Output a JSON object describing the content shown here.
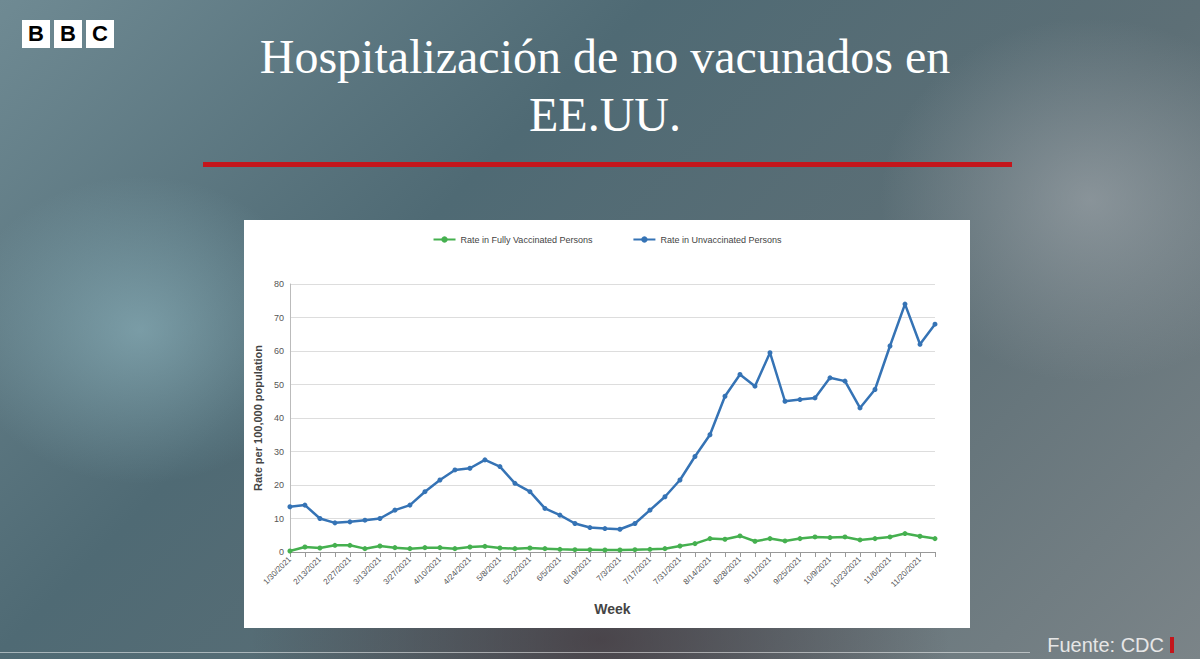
{
  "header": {
    "logo": "BBC",
    "title": "Hospitalización de no vacunados en EE.UU.",
    "source": "Fuente: CDC"
  },
  "chart_data": {
    "type": "line",
    "x_label": "Week",
    "y_label": "Rate per 100,000 population",
    "categories": [
      "1/30/2021",
      null,
      "2/13/2021",
      null,
      "2/27/2021",
      null,
      "3/13/2021",
      null,
      "3/27/2021",
      null,
      "4/10/2021",
      null,
      "4/24/2021",
      null,
      "5/8/2021",
      null,
      "5/22/2021",
      null,
      "6/5/2021",
      null,
      "6/19/2021",
      null,
      "7/3/2021",
      null,
      "7/17/2021",
      null,
      "7/31/2021",
      null,
      "8/14/2021",
      null,
      "8/28/2021",
      null,
      "9/11/2021",
      null,
      "9/25/2021",
      null,
      "10/9/2021",
      null,
      "10/23/2021",
      null,
      "11/6/2021",
      null,
      "11/20/2021",
      null
    ],
    "series": [
      {
        "name": "Rate in Fully Vaccinated Persons",
        "color": "#45b04f",
        "marker": "circle",
        "line_style": "solid",
        "values": [
          0.3,
          1.5,
          1.2,
          2,
          2,
          1,
          1.8,
          1.3,
          1,
          1.3,
          1.3,
          1,
          1.5,
          1.7,
          1.2,
          1,
          1.2,
          1,
          0.8,
          0.7,
          0.7,
          0.6,
          0.6,
          0.7,
          0.8,
          1,
          1.8,
          2.5,
          4,
          3.8,
          4.8,
          3.2,
          4,
          3.3,
          4,
          4.5,
          4.3,
          4.5,
          3.6,
          4,
          4.5,
          5.5,
          4.7,
          4
        ]
      },
      {
        "name": "Rate in Unvaccinated Persons",
        "color": "#3573b5",
        "marker": "circle",
        "line_style": "solid",
        "values": [
          13.5,
          14,
          10,
          8.7,
          9,
          9.5,
          10,
          12.5,
          14,
          18,
          21.5,
          24.5,
          25,
          27.5,
          25.5,
          20.5,
          18,
          13,
          11,
          8.5,
          7.3,
          7,
          6.8,
          8.5,
          12.5,
          16.5,
          21.5,
          28.5,
          35,
          46.5,
          53,
          49.5,
          59.5,
          45,
          45.5,
          46,
          52,
          51,
          43,
          48.5,
          61.5,
          74,
          62,
          68
        ]
      }
    ],
    "ylim": [
      0,
      80
    ],
    "yticks": [
      0,
      10,
      20,
      30,
      40,
      50,
      60,
      70,
      80
    ],
    "grid": true,
    "legend": "top"
  }
}
